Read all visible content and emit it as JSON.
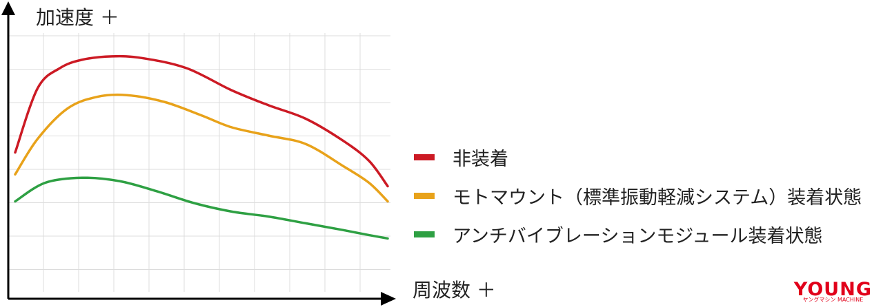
{
  "chart_data": {
    "type": "line",
    "xlabel": "周波数 ＋",
    "ylabel": "加速度 ＋",
    "grid": true,
    "legend_position": "right",
    "series": [
      {
        "name": "非装着",
        "color": "#cc1a24",
        "values": [
          [
            0.0,
            0.3
          ],
          [
            0.06,
            0.68
          ],
          [
            0.12,
            0.8
          ],
          [
            0.18,
            0.85
          ],
          [
            0.26,
            0.87
          ],
          [
            0.34,
            0.86
          ],
          [
            0.46,
            0.8
          ],
          [
            0.58,
            0.67
          ],
          [
            0.68,
            0.58
          ],
          [
            0.78,
            0.5
          ],
          [
            0.88,
            0.37
          ],
          [
            0.95,
            0.25
          ],
          [
            1.0,
            0.1
          ]
        ]
      },
      {
        "name": "モトマウント（標準振動軽減システム）装着状態",
        "color": "#e8a21a",
        "values": [
          [
            0.0,
            0.17
          ],
          [
            0.06,
            0.38
          ],
          [
            0.14,
            0.56
          ],
          [
            0.22,
            0.63
          ],
          [
            0.3,
            0.64
          ],
          [
            0.4,
            0.6
          ],
          [
            0.5,
            0.52
          ],
          [
            0.58,
            0.45
          ],
          [
            0.68,
            0.4
          ],
          [
            0.78,
            0.35
          ],
          [
            0.88,
            0.22
          ],
          [
            0.95,
            0.12
          ],
          [
            1.0,
            0.01
          ]
        ]
      },
      {
        "name": "アンチバイブレーションモジュール装着状態",
        "color": "#2ea043",
        "values": [
          [
            0.0,
            0.01
          ],
          [
            0.08,
            0.12
          ],
          [
            0.18,
            0.15
          ],
          [
            0.28,
            0.13
          ],
          [
            0.38,
            0.07
          ],
          [
            0.48,
            0.0
          ],
          [
            0.58,
            -0.05
          ],
          [
            0.68,
            -0.08
          ],
          [
            0.78,
            -0.12
          ],
          [
            0.88,
            -0.16
          ],
          [
            0.95,
            -0.19
          ],
          [
            1.0,
            -0.21
          ]
        ]
      }
    ]
  },
  "watermark": {
    "main": "YOUNG",
    "sub": "ヤングマシン MACHINE"
  }
}
